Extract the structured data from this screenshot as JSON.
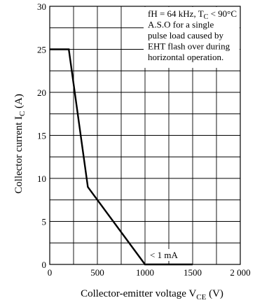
{
  "chart_data": {
    "type": "line",
    "title": "",
    "xlabel": "Collector-emitter voltage",
    "xlabel_symbol": "V",
    "xlabel_sub": "CE",
    "xlabel_unit": "(V)",
    "ylabel": "Collector current",
    "ylabel_symbol": "I",
    "ylabel_sub": "C",
    "ylabel_unit": "(A)",
    "xlim": [
      0,
      2000
    ],
    "ylim": [
      0,
      30
    ],
    "x_ticks": [
      0,
      500,
      1000,
      1500,
      2000
    ],
    "x_tick_labels": [
      "0",
      "500",
      "1000",
      "1500",
      "2 000"
    ],
    "y_ticks": [
      0,
      5,
      10,
      15,
      20,
      25,
      30
    ],
    "y_tick_labels": [
      "0",
      "5",
      "10",
      "15",
      "20",
      "25",
      "30"
    ],
    "x_minor_step": 250,
    "y_minor_step": 2.5,
    "grid": true,
    "series": [
      {
        "x": [
          0,
          200,
          400,
          1000,
          1500
        ],
        "y": [
          25,
          25,
          9,
          0,
          0
        ]
      }
    ],
    "annotation": {
      "lines": [
        "fH = 64 kHz, T_C < 90°C",
        "A.S.O for a single",
        "pulse load caused by",
        "EHT flash over during",
        "horizontal operation."
      ],
      "line1_prefix": "fH = 64 kHz, T",
      "line1_sub": "C",
      "line1_suffix": " < 90°C"
    },
    "leakage_label": "< 1 mA"
  }
}
